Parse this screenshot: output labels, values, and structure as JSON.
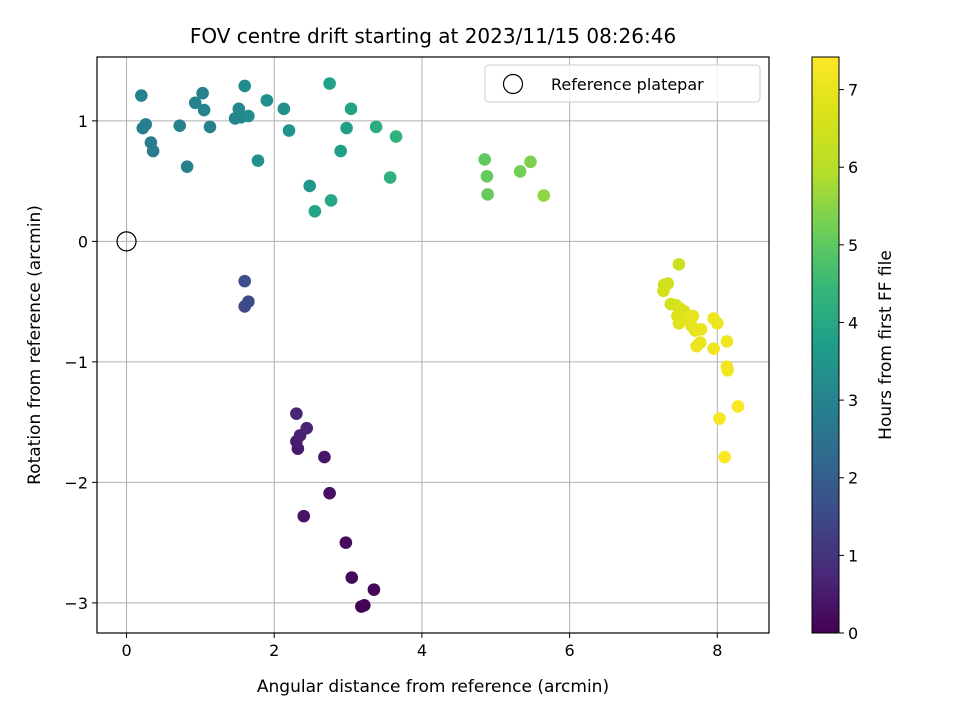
{
  "chart_data": {
    "type": "scatter",
    "title": "FOV centre drift starting at 2023/11/15 08:26:46",
    "xlabel": "Angular distance from reference (arcmin)",
    "ylabel": "Rotation from reference (arcmin)",
    "xlim": [
      -0.4,
      8.7
    ],
    "ylim": [
      -3.25,
      1.53
    ],
    "xticks": [
      0,
      2,
      4,
      6,
      8
    ],
    "xtick_labels": [
      "0",
      "2",
      "4",
      "6",
      "8"
    ],
    "yticks": [
      -3,
      -2,
      -1,
      0,
      1
    ],
    "ytick_labels": [
      "−3",
      "−2",
      "−1",
      "0",
      "1"
    ],
    "grid": true,
    "colormap": "viridis",
    "colorbar": {
      "label": "Hours from first FF file",
      "range": [
        0,
        7.42
      ],
      "ticks": [
        0,
        1,
        2,
        3,
        4,
        5,
        6,
        7
      ],
      "tick_labels": [
        "0",
        "1",
        "2",
        "3",
        "4",
        "5",
        "6",
        "7"
      ]
    },
    "legend": {
      "position": "top-right",
      "entries": [
        "Reference platepar"
      ]
    },
    "reference_point": {
      "x": 0,
      "y": 0
    },
    "points": [
      {
        "x": 3.18,
        "y": -3.03,
        "h": 0.0
      },
      {
        "x": 3.22,
        "y": -3.02,
        "h": 0.05
      },
      {
        "x": 3.35,
        "y": -2.89,
        "h": 0.1
      },
      {
        "x": 3.05,
        "y": -2.79,
        "h": 0.15
      },
      {
        "x": 2.97,
        "y": -2.5,
        "h": 0.2
      },
      {
        "x": 2.75,
        "y": -2.09,
        "h": 0.28
      },
      {
        "x": 2.4,
        "y": -2.28,
        "h": 0.35
      },
      {
        "x": 2.68,
        "y": -1.79,
        "h": 0.42
      },
      {
        "x": 2.32,
        "y": -1.72,
        "h": 0.5
      },
      {
        "x": 2.3,
        "y": -1.66,
        "h": 0.55
      },
      {
        "x": 2.35,
        "y": -1.61,
        "h": 0.6
      },
      {
        "x": 2.44,
        "y": -1.55,
        "h": 0.65
      },
      {
        "x": 2.3,
        "y": -1.43,
        "h": 0.7
      },
      {
        "x": 1.6,
        "y": -0.54,
        "h": 1.5
      },
      {
        "x": 1.65,
        "y": -0.5,
        "h": 1.55
      },
      {
        "x": 1.6,
        "y": -0.33,
        "h": 1.62
      },
      {
        "x": 0.2,
        "y": 1.21,
        "h": 2.9
      },
      {
        "x": 0.22,
        "y": 0.94,
        "h": 2.85
      },
      {
        "x": 0.26,
        "y": 0.97,
        "h": 2.82
      },
      {
        "x": 0.33,
        "y": 0.82,
        "h": 2.8
      },
      {
        "x": 0.36,
        "y": 0.75,
        "h": 2.78
      },
      {
        "x": 0.72,
        "y": 0.96,
        "h": 2.9
      },
      {
        "x": 0.82,
        "y": 0.62,
        "h": 2.95
      },
      {
        "x": 0.93,
        "y": 1.15,
        "h": 2.95
      },
      {
        "x": 1.03,
        "y": 1.23,
        "h": 2.9
      },
      {
        "x": 1.05,
        "y": 1.09,
        "h": 3.0
      },
      {
        "x": 1.13,
        "y": 0.95,
        "h": 3.0
      },
      {
        "x": 1.47,
        "y": 1.02,
        "h": 3.05
      },
      {
        "x": 1.52,
        "y": 1.1,
        "h": 3.1
      },
      {
        "x": 1.55,
        "y": 1.03,
        "h": 3.1
      },
      {
        "x": 1.6,
        "y": 1.29,
        "h": 3.2
      },
      {
        "x": 1.65,
        "y": 1.04,
        "h": 3.25
      },
      {
        "x": 1.78,
        "y": 0.67,
        "h": 3.35
      },
      {
        "x": 1.9,
        "y": 1.17,
        "h": 3.3
      },
      {
        "x": 2.13,
        "y": 1.1,
        "h": 3.35
      },
      {
        "x": 2.2,
        "y": 0.92,
        "h": 3.45
      },
      {
        "x": 2.48,
        "y": 0.46,
        "h": 3.55
      },
      {
        "x": 2.55,
        "y": 0.25,
        "h": 3.9
      },
      {
        "x": 2.75,
        "y": 1.31,
        "h": 3.8
      },
      {
        "x": 2.77,
        "y": 0.34,
        "h": 3.95
      },
      {
        "x": 2.9,
        "y": 0.75,
        "h": 3.7
      },
      {
        "x": 2.98,
        "y": 0.94,
        "h": 3.75
      },
      {
        "x": 3.04,
        "y": 1.1,
        "h": 3.85
      },
      {
        "x": 3.38,
        "y": 0.95,
        "h": 4.15
      },
      {
        "x": 3.57,
        "y": 0.53,
        "h": 4.25
      },
      {
        "x": 3.65,
        "y": 0.87,
        "h": 4.3
      },
      {
        "x": 4.85,
        "y": 0.68,
        "h": 5.0
      },
      {
        "x": 4.88,
        "y": 0.54,
        "h": 5.05
      },
      {
        "x": 4.89,
        "y": 0.39,
        "h": 5.1
      },
      {
        "x": 5.33,
        "y": 0.58,
        "h": 5.25
      },
      {
        "x": 5.47,
        "y": 0.66,
        "h": 5.35
      },
      {
        "x": 5.65,
        "y": 0.38,
        "h": 5.55
      },
      {
        "x": 7.48,
        "y": -0.19,
        "h": 6.4
      },
      {
        "x": 7.28,
        "y": -0.36,
        "h": 6.45
      },
      {
        "x": 7.33,
        "y": -0.35,
        "h": 6.5
      },
      {
        "x": 7.27,
        "y": -0.41,
        "h": 6.55
      },
      {
        "x": 7.37,
        "y": -0.52,
        "h": 6.55
      },
      {
        "x": 7.44,
        "y": -0.53,
        "h": 6.6
      },
      {
        "x": 7.5,
        "y": -0.56,
        "h": 6.65
      },
      {
        "x": 7.55,
        "y": -0.58,
        "h": 6.7
      },
      {
        "x": 7.46,
        "y": -0.62,
        "h": 6.75
      },
      {
        "x": 7.48,
        "y": -0.68,
        "h": 6.8
      },
      {
        "x": 7.58,
        "y": -0.64,
        "h": 6.85
      },
      {
        "x": 7.62,
        "y": -0.66,
        "h": 6.9
      },
      {
        "x": 7.67,
        "y": -0.62,
        "h": 6.95
      },
      {
        "x": 7.65,
        "y": -0.7,
        "h": 6.95
      },
      {
        "x": 7.7,
        "y": -0.74,
        "h": 7.0
      },
      {
        "x": 7.78,
        "y": -0.73,
        "h": 7.0
      },
      {
        "x": 7.72,
        "y": -0.87,
        "h": 7.05
      },
      {
        "x": 7.77,
        "y": -0.84,
        "h": 7.05
      },
      {
        "x": 7.95,
        "y": -0.64,
        "h": 7.1
      },
      {
        "x": 8.0,
        "y": -0.68,
        "h": 7.1
      },
      {
        "x": 7.95,
        "y": -0.89,
        "h": 7.15
      },
      {
        "x": 8.13,
        "y": -0.83,
        "h": 7.15
      },
      {
        "x": 8.13,
        "y": -1.04,
        "h": 7.2
      },
      {
        "x": 8.14,
        "y": -1.07,
        "h": 7.2
      },
      {
        "x": 8.03,
        "y": -1.47,
        "h": 7.3
      },
      {
        "x": 8.28,
        "y": -1.37,
        "h": 7.35
      },
      {
        "x": 8.1,
        "y": -1.79,
        "h": 7.4
      }
    ]
  }
}
